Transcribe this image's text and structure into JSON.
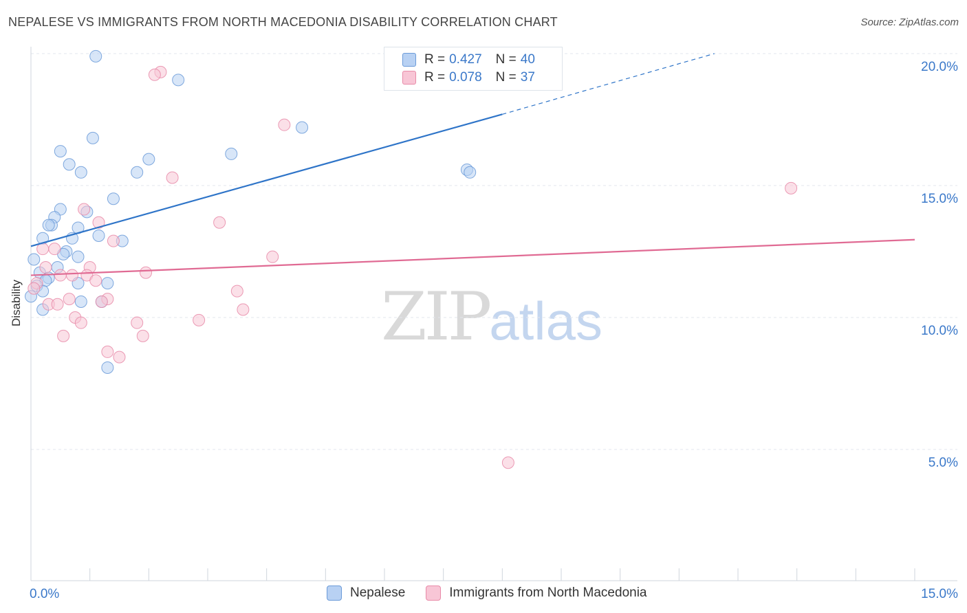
{
  "header": {
    "title": "NEPALESE VS IMMIGRANTS FROM NORTH MACEDONIA DISABILITY CORRELATION CHART",
    "source": "Source: ZipAtlas.com"
  },
  "watermark": {
    "zip": "ZIP",
    "atlas": "atlas"
  },
  "legend_top": [
    {
      "r_label": "R =",
      "r_value": "0.427",
      "n_label": "N =",
      "n_value": "40"
    },
    {
      "r_label": "R =",
      "r_value": "0.078",
      "n_label": "N =",
      "n_value": "37"
    }
  ],
  "legend_bottom": [
    {
      "label": "Nepalese"
    },
    {
      "label": "Immigrants from North Macedonia"
    }
  ],
  "colors": {
    "blue_fill": "#b8d1f3",
    "blue_stroke": "#6a9ad8",
    "blue_line": "#2e74c8",
    "pink_fill": "#f8c6d6",
    "pink_stroke": "#e88aa8",
    "pink_line": "#e06a93",
    "tick_text": "#3a78c9",
    "grid": "#e3e7ec"
  },
  "chart_data": {
    "type": "scatter",
    "title": "NEPALESE VS IMMIGRANTS FROM NORTH MACEDONIA DISABILITY CORRELATION CHART",
    "xlabel": "",
    "ylabel": "Disability",
    "xlim": [
      0,
      15
    ],
    "ylim": [
      0,
      20.5
    ],
    "x_tick_labels": [
      {
        "value": 0,
        "label": "0.0%"
      },
      {
        "value": 15,
        "label": "15.0%"
      }
    ],
    "y_ticks": [
      {
        "value": 5,
        "label": "5.0%"
      },
      {
        "value": 10,
        "label": "10.0%"
      },
      {
        "value": 15,
        "label": "15.0%"
      },
      {
        "value": 20,
        "label": "20.0%"
      }
    ],
    "series": [
      {
        "name": "Nepalese",
        "color": "blue",
        "trend": {
          "x0": 0.0,
          "y0": 12.7,
          "x1": 8.0,
          "y1": 17.7,
          "dash_to_x": 11.6,
          "dash_to_y": 20.0
        },
        "points": [
          [
            1.1,
            19.9
          ],
          [
            2.5,
            19.0
          ],
          [
            4.6,
            17.2
          ],
          [
            1.05,
            16.8
          ],
          [
            0.5,
            16.3
          ],
          [
            3.4,
            16.2
          ],
          [
            2.0,
            16.0
          ],
          [
            0.65,
            15.8
          ],
          [
            0.85,
            15.5
          ],
          [
            1.8,
            15.5
          ],
          [
            7.4,
            15.6
          ],
          [
            7.45,
            15.5
          ],
          [
            1.4,
            14.5
          ],
          [
            0.5,
            14.1
          ],
          [
            0.4,
            13.8
          ],
          [
            0.35,
            13.5
          ],
          [
            0.95,
            14.0
          ],
          [
            0.3,
            13.5
          ],
          [
            0.8,
            13.4
          ],
          [
            1.15,
            13.1
          ],
          [
            0.2,
            13.0
          ],
          [
            0.7,
            13.0
          ],
          [
            1.55,
            12.9
          ],
          [
            0.6,
            12.5
          ],
          [
            0.55,
            12.4
          ],
          [
            0.8,
            12.3
          ],
          [
            0.05,
            12.2
          ],
          [
            0.45,
            11.9
          ],
          [
            0.15,
            11.7
          ],
          [
            0.3,
            11.5
          ],
          [
            0.25,
            11.4
          ],
          [
            0.1,
            11.2
          ],
          [
            0.8,
            11.3
          ],
          [
            1.3,
            11.3
          ],
          [
            0.2,
            11.0
          ],
          [
            0.0,
            10.8
          ],
          [
            0.85,
            10.6
          ],
          [
            1.2,
            10.6
          ],
          [
            0.2,
            10.3
          ],
          [
            1.3,
            8.1
          ]
        ]
      },
      {
        "name": "Immigrants from North Macedonia",
        "color": "pink",
        "trend": {
          "x0": 0.0,
          "y0": 11.6,
          "x1": 15.0,
          "y1": 12.95
        },
        "points": [
          [
            2.2,
            19.3
          ],
          [
            2.1,
            19.2
          ],
          [
            4.3,
            17.3
          ],
          [
            2.4,
            15.3
          ],
          [
            12.9,
            14.9
          ],
          [
            0.9,
            14.1
          ],
          [
            1.15,
            13.6
          ],
          [
            3.2,
            13.6
          ],
          [
            1.4,
            12.9
          ],
          [
            0.4,
            12.6
          ],
          [
            0.2,
            12.6
          ],
          [
            4.1,
            12.3
          ],
          [
            0.25,
            11.9
          ],
          [
            1.0,
            11.9
          ],
          [
            1.95,
            11.7
          ],
          [
            0.5,
            11.6
          ],
          [
            0.7,
            11.6
          ],
          [
            0.95,
            11.6
          ],
          [
            0.1,
            11.3
          ],
          [
            1.1,
            11.4
          ],
          [
            0.05,
            11.1
          ],
          [
            3.5,
            11.0
          ],
          [
            0.65,
            10.7
          ],
          [
            1.3,
            10.7
          ],
          [
            0.3,
            10.5
          ],
          [
            0.45,
            10.5
          ],
          [
            1.2,
            10.6
          ],
          [
            3.6,
            10.3
          ],
          [
            0.75,
            10.0
          ],
          [
            2.85,
            9.9
          ],
          [
            0.85,
            9.8
          ],
          [
            1.8,
            9.8
          ],
          [
            0.55,
            9.3
          ],
          [
            1.9,
            9.3
          ],
          [
            1.3,
            8.7
          ],
          [
            1.5,
            8.5
          ],
          [
            8.1,
            4.5
          ]
        ]
      }
    ]
  }
}
